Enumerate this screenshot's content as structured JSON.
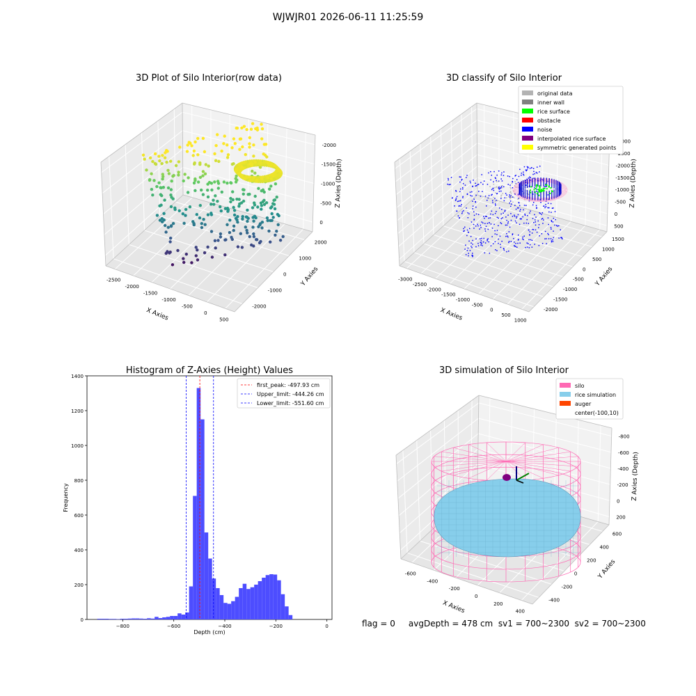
{
  "figure": {
    "suptitle": "WJWJR01 2026-06-11 11:25:59",
    "bottom_text": "flag = 0     avgDepth = 478 cm  sv1 = 700~2300  sv2 = 700~2300"
  },
  "chart_data": [
    {
      "type": "scatter",
      "is_3d": true,
      "title": "3D Plot of Silo Interior(row data)",
      "xlabel": "X Axies",
      "ylabel": "Y Axies",
      "zlabel": "Z Axies (Depth)",
      "xticks": [
        "-2500",
        "-2000",
        "-1500",
        "-1000",
        "-500",
        "0",
        "500"
      ],
      "yticks": [
        "-2000",
        "-1000",
        "0",
        "1000",
        "2000"
      ],
      "zticks": [
        "-2000",
        "-1500",
        "-1000",
        "-500",
        "0"
      ],
      "xlim": [
        -2700,
        600
      ],
      "ylim": [
        -2400,
        2300
      ],
      "zlim": [
        -2300,
        100
      ],
      "colormap": "viridis"
    },
    {
      "type": "scatter",
      "is_3d": true,
      "title": "3D classify of Silo Interior",
      "xlabel": "X Axies",
      "ylabel": "Y Axies",
      "zlabel": "Z Axies (Depth)",
      "xticks": [
        "-3000",
        "-2500",
        "-2000",
        "-1500",
        "-1000",
        "-500",
        "0",
        "500",
        "1000"
      ],
      "yticks": [
        "-2000",
        "-1500",
        "-1000",
        "-500",
        "0",
        "500",
        "1000",
        "1500"
      ],
      "zticks": [
        "-3000",
        "-2500",
        "-2000",
        "-1500",
        "-1000",
        "-500",
        "0",
        "500"
      ],
      "legend_position": "top-right",
      "legend": [
        {
          "label": "original data",
          "color": "#b3b3b3"
        },
        {
          "label": "inner wall",
          "color": "#808080"
        },
        {
          "label": "rice surface",
          "color": "#00ff00"
        },
        {
          "label": "obstacle",
          "color": "#ff0000"
        },
        {
          "label": "noise",
          "color": "#0000ff"
        },
        {
          "label": "interpolated rice surface",
          "color": "#800080"
        },
        {
          "label": "symmetric generated points",
          "color": "#ffff00"
        }
      ]
    },
    {
      "type": "bar",
      "title": "Histogram of Z-Axies (Height) Values",
      "xlabel": "Depth (cm)",
      "ylabel": "Frequency",
      "xlim": [
        -940,
        20
      ],
      "ylim": [
        0,
        1400
      ],
      "xticks": [
        "-800",
        "-600",
        "-400",
        "-200",
        "0"
      ],
      "yticks": [
        "0",
        "200",
        "400",
        "600",
        "800",
        "1000",
        "1200",
        "1400"
      ],
      "bin_width": 15,
      "bar_color": "#4d4dff",
      "bins": [
        {
          "x": -900,
          "count": 4
        },
        {
          "x": -885,
          "count": 4
        },
        {
          "x": -870,
          "count": 4
        },
        {
          "x": -855,
          "count": 3
        },
        {
          "x": -840,
          "count": 3
        },
        {
          "x": -825,
          "count": 2
        },
        {
          "x": -810,
          "count": 4
        },
        {
          "x": -795,
          "count": 4
        },
        {
          "x": -780,
          "count": 5
        },
        {
          "x": -765,
          "count": 6
        },
        {
          "x": -750,
          "count": 6
        },
        {
          "x": -735,
          "count": 5
        },
        {
          "x": -720,
          "count": 4
        },
        {
          "x": -705,
          "count": 7
        },
        {
          "x": -690,
          "count": 5
        },
        {
          "x": -675,
          "count": 15
        },
        {
          "x": -660,
          "count": 8
        },
        {
          "x": -645,
          "count": 12
        },
        {
          "x": -630,
          "count": 15
        },
        {
          "x": -615,
          "count": 20
        },
        {
          "x": -600,
          "count": 20
        },
        {
          "x": -585,
          "count": 35
        },
        {
          "x": -570,
          "count": 28
        },
        {
          "x": -555,
          "count": 40
        },
        {
          "x": -540,
          "count": 190
        },
        {
          "x": -525,
          "count": 710
        },
        {
          "x": -510,
          "count": 1330
        },
        {
          "x": -495,
          "count": 1150
        },
        {
          "x": -480,
          "count": 500
        },
        {
          "x": -465,
          "count": 350
        },
        {
          "x": -450,
          "count": 235
        },
        {
          "x": -435,
          "count": 180
        },
        {
          "x": -420,
          "count": 140
        },
        {
          "x": -405,
          "count": 95
        },
        {
          "x": -390,
          "count": 90
        },
        {
          "x": -375,
          "count": 105
        },
        {
          "x": -360,
          "count": 130
        },
        {
          "x": -345,
          "count": 180
        },
        {
          "x": -330,
          "count": 205
        },
        {
          "x": -315,
          "count": 175
        },
        {
          "x": -300,
          "count": 185
        },
        {
          "x": -285,
          "count": 200
        },
        {
          "x": -270,
          "count": 220
        },
        {
          "x": -255,
          "count": 240
        },
        {
          "x": -240,
          "count": 255
        },
        {
          "x": -225,
          "count": 260
        },
        {
          "x": -210,
          "count": 258
        },
        {
          "x": -195,
          "count": 225
        },
        {
          "x": -180,
          "count": 145
        },
        {
          "x": -165,
          "count": 75
        },
        {
          "x": -150,
          "count": 25
        }
      ],
      "vlines": [
        {
          "label": "first_peak: -497.93 cm",
          "x": -497.93,
          "color": "#ff0000",
          "style": "dashed"
        },
        {
          "label": "Upper_limit: -444.26 cm",
          "x": -444.26,
          "color": "#0000ff",
          "style": "dashed"
        },
        {
          "label": "Lower_limit: -551.60 cm",
          "x": -551.6,
          "color": "#0000ff",
          "style": "dashed"
        }
      ],
      "legend_position": "top-right"
    },
    {
      "type": "surface",
      "is_3d": true,
      "title": "3D simulation of Silo Interior",
      "xlabel": "X Axies",
      "ylabel": "Y Axies",
      "zlabel": "Z Axies (Depth)",
      "xticks": [
        "-600",
        "-400",
        "-200",
        "0",
        "200",
        "400"
      ],
      "yticks": [
        "-400",
        "-200",
        "0",
        "200",
        "400",
        "600"
      ],
      "zticks": [
        "-800",
        "-600",
        "-400",
        "-200",
        "0",
        "200"
      ],
      "legend_position": "top-right",
      "legend": [
        {
          "label": "silo",
          "color": "#ff69b4"
        },
        {
          "label": "rice simulation",
          "color": "#87ceeb"
        },
        {
          "label": "auger",
          "color": "#ff4500"
        },
        {
          "label": "center(-100,10)",
          "color": "#ffffff"
        }
      ]
    }
  ]
}
